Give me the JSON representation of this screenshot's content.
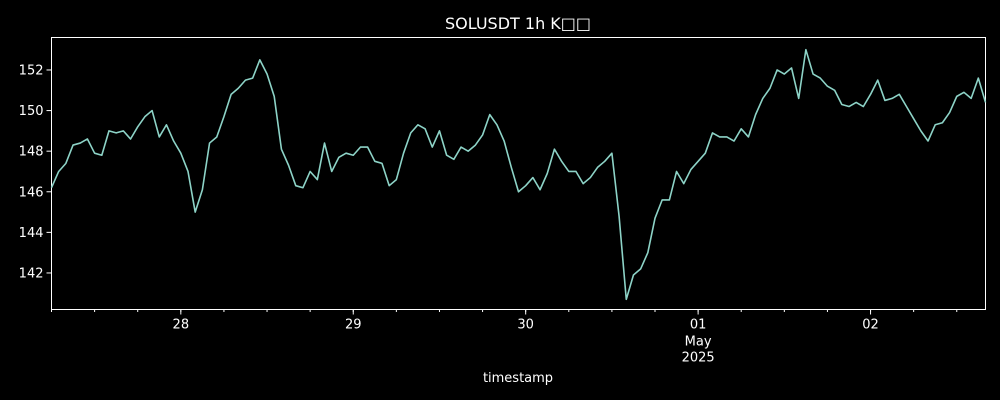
{
  "chart_data": {
    "type": "line",
    "title": "SOLUSDT 1h K□□",
    "xlabel": "timestamp",
    "ylabel": "",
    "x_unit": "hour",
    "x_start": "2025-04-27T06:00",
    "xlim": [
      "2025-04-27T06:00",
      "2025-05-02T16:00"
    ],
    "ylim": [
      140.2,
      153.6
    ],
    "grid": false,
    "colors": {
      "background": "#000000",
      "line": "#8dd3c7",
      "axis": "#ffffff",
      "text": "#ffffff"
    },
    "x_ticks": [
      {
        "at": "2025-04-28T00:00",
        "label": "28"
      },
      {
        "at": "2025-04-29T00:00",
        "label": "29"
      },
      {
        "at": "2025-04-30T00:00",
        "label": "30"
      },
      {
        "at": "2025-05-01T00:00",
        "label": "01",
        "sublabel": "May",
        "sublabel2": "2025"
      },
      {
        "at": "2025-05-02T00:00",
        "label": "02"
      }
    ],
    "y_ticks": [
      142,
      144,
      146,
      148,
      150,
      152
    ],
    "series": [
      {
        "values": [
          146.2,
          147.0,
          147.4,
          148.3,
          148.4,
          148.6,
          147.9,
          147.8,
          149.0,
          148.9,
          149.0,
          148.6,
          149.2,
          149.7,
          150.0,
          148.7,
          149.3,
          148.5,
          147.9,
          147.0,
          145.0,
          146.1,
          148.4,
          148.7,
          149.7,
          150.8,
          151.1,
          151.5,
          151.6,
          152.5,
          151.8,
          150.7,
          148.1,
          147.3,
          146.3,
          146.2,
          147.0,
          146.6,
          148.4,
          147.0,
          147.7,
          147.9,
          147.8,
          148.2,
          148.2,
          147.5,
          147.4,
          146.3,
          146.6,
          147.9,
          148.9,
          149.3,
          149.1,
          148.2,
          149.0,
          147.8,
          147.6,
          148.2,
          148.0,
          148.3,
          148.8,
          149.8,
          149.3,
          148.5,
          147.2,
          146.0,
          146.3,
          146.7,
          146.1,
          146.9,
          148.1,
          147.5,
          147.0,
          147.0,
          146.4,
          146.7,
          147.2,
          147.5,
          147.9,
          144.8,
          140.7,
          141.9,
          142.2,
          143.0,
          144.7,
          145.6,
          145.6,
          147.0,
          146.4,
          147.1,
          147.5,
          147.9,
          148.9,
          148.7,
          148.7,
          148.5,
          149.1,
          148.7,
          149.8,
          150.6,
          151.1,
          152.0,
          151.8,
          152.1,
          150.6,
          153.0,
          151.8,
          151.6,
          151.2,
          151.0,
          150.3,
          150.2,
          150.4,
          150.2,
          150.8,
          151.5,
          150.5,
          150.6,
          150.8,
          150.2,
          149.6,
          149.0,
          148.5,
          149.3,
          149.4,
          149.9,
          150.7,
          150.9,
          150.6,
          151.6,
          150.4
        ]
      }
    ]
  }
}
